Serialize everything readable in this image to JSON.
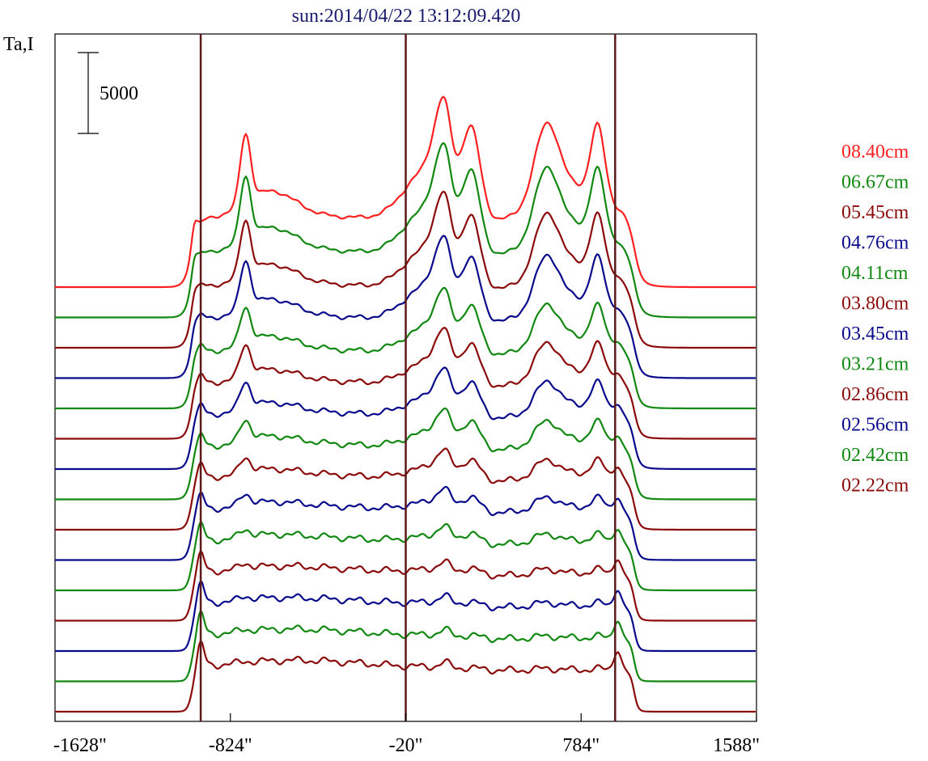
{
  "chart_data": {
    "type": "line",
    "title": "sun:2014/04/22 13:12:09.420",
    "ylabel": "Ta,I",
    "scale_bar_label": "5000",
    "scale_bar_value": 5000,
    "xlim": [
      -1628,
      1588
    ],
    "x_ticks": [
      {
        "value": -1628,
        "label": "-1628\""
      },
      {
        "value": -824,
        "label": "-824\""
      },
      {
        "value": -20,
        "label": "-20\""
      },
      {
        "value": 784,
        "label": "784\""
      },
      {
        "value": 1588,
        "label": "1588\""
      }
    ],
    "vertical_markers": [
      -960,
      -20,
      940
    ],
    "marker_color": "#5a1a1a",
    "legend_placement": "right",
    "colors": {
      "red": "#ff2020",
      "green": "#118811",
      "maroon": "#8b0b0b",
      "blue": "#0a0a8c"
    },
    "series": [
      {
        "name": "08.40cm",
        "color": "#ff2020",
        "amp": 1.0,
        "active": 1.0,
        "limb": 0.0,
        "stack": 0,
        "legend": true
      },
      {
        "name": "06.67cm",
        "color": "#118811",
        "amp": 0.95,
        "active": 0.9,
        "limb": 0.12,
        "stack": 1,
        "legend": true
      },
      {
        "name": "05.45cm",
        "color": "#8b0b0b",
        "amp": 0.9,
        "active": 0.78,
        "limb": 0.22,
        "stack": 2,
        "legend": true
      },
      {
        "name": "04.76cm",
        "color": "#0a0a8c",
        "amp": 0.88,
        "active": 0.68,
        "limb": 0.3,
        "stack": 3,
        "legend": true
      },
      {
        "name": "04.11cm",
        "color": "#118811",
        "amp": 0.85,
        "active": 0.52,
        "limb": 0.4,
        "stack": 4,
        "legend": true
      },
      {
        "name": "03.80cm",
        "color": "#8b0b0b",
        "amp": 0.84,
        "active": 0.45,
        "limb": 0.47,
        "stack": 5,
        "legend": true
      },
      {
        "name": "03.45cm",
        "color": "#0a0a8c",
        "amp": 0.83,
        "active": 0.38,
        "limb": 0.54,
        "stack": 6,
        "legend": true
      },
      {
        "name": "03.21cm",
        "color": "#118811",
        "amp": 0.82,
        "active": 0.3,
        "limb": 0.6,
        "stack": 7,
        "legend": true
      },
      {
        "name": "02.86cm",
        "color": "#8b0b0b",
        "amp": 0.82,
        "active": 0.22,
        "limb": 0.66,
        "stack": 8,
        "legend": true
      },
      {
        "name": "02.56cm",
        "color": "#0a0a8c",
        "amp": 0.81,
        "active": 0.16,
        "limb": 0.72,
        "stack": 9,
        "legend": true
      },
      {
        "name": "02.42cm",
        "color": "#118811",
        "amp": 0.8,
        "active": 0.11,
        "limb": 0.78,
        "stack": 10,
        "legend": true
      },
      {
        "name": "02.22cm",
        "color": "#8b0b0b",
        "amp": 0.8,
        "active": 0.07,
        "limb": 0.84,
        "stack": 11,
        "legend": true
      },
      {
        "name": "",
        "color": "#0a0a8c",
        "amp": 0.79,
        "active": 0.05,
        "limb": 0.9,
        "stack": 12,
        "legend": false
      },
      {
        "name": "",
        "color": "#118811",
        "amp": 0.78,
        "active": 0.03,
        "limb": 0.95,
        "stack": 13,
        "legend": false
      },
      {
        "name": "",
        "color": "#8b0b0b",
        "amp": 0.77,
        "active": 0.02,
        "limb": 1.0,
        "stack": 14,
        "legend": false
      }
    ]
  }
}
